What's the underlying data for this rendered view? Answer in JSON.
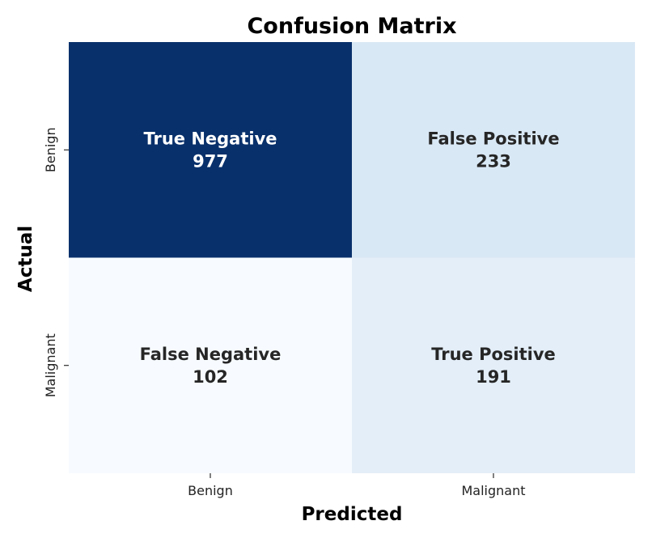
{
  "chart_data": {
    "type": "heatmap",
    "title": "Confusion Matrix",
    "xlabel": "Predicted",
    "ylabel": "Actual",
    "x_categories": [
      "Benign",
      "Malignant"
    ],
    "y_categories": [
      "Benign",
      "Malignant"
    ],
    "cells": [
      {
        "row": 0,
        "col": 0,
        "label": "True Negative",
        "value": 977
      },
      {
        "row": 0,
        "col": 1,
        "label": "False Positive",
        "value": 233
      },
      {
        "row": 1,
        "col": 0,
        "label": "False Negative",
        "value": 102
      },
      {
        "row": 1,
        "col": 1,
        "label": "True Positive",
        "value": 191
      }
    ],
    "colormap": "Blues",
    "colorbar": false,
    "colors": {
      "low": "#f7fbff",
      "high": "#08306b",
      "text_light": "#ffffff",
      "text_dark": "#262626"
    }
  }
}
